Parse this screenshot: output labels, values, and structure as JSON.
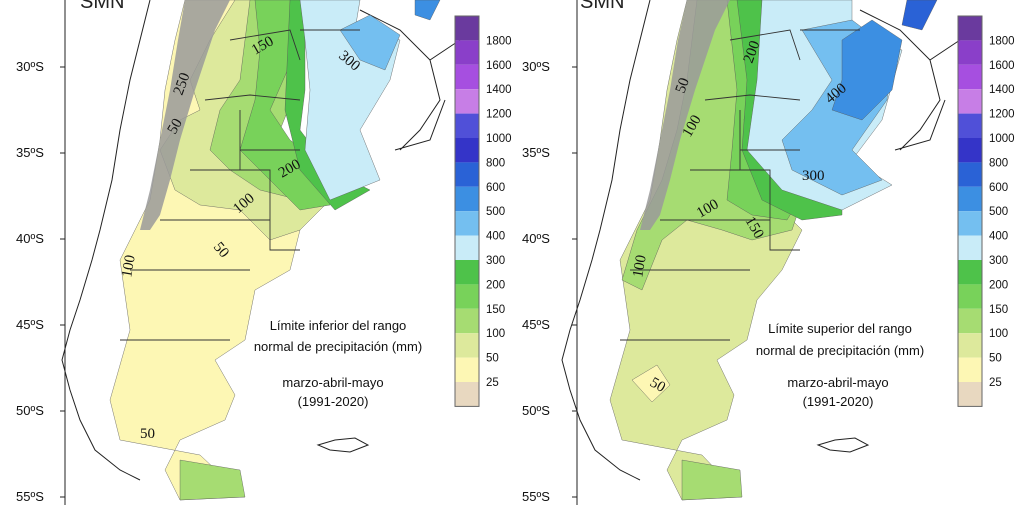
{
  "legend": {
    "levels": [
      "1800",
      "1600",
      "1400",
      "1200",
      "1000",
      "800",
      "600",
      "500",
      "400",
      "300",
      "200",
      "150",
      "100",
      "50",
      "25"
    ],
    "colors": [
      "#6a3a9e",
      "#8a3fc9",
      "#a64fe0",
      "#c77ee6",
      "#5050d8",
      "#3434c8",
      "#2a62d6",
      "#3c8fe2",
      "#74bff0",
      "#c9ecf8",
      "#4ec24a",
      "#78d25a",
      "#a6dc72",
      "#dde99c",
      "#fdf7b4",
      "#e8d8c0"
    ]
  },
  "axes": {
    "lat_ticks": [
      "30ºS",
      "35ºS",
      "40ºS",
      "45ºS",
      "50ºS",
      "55ºS"
    ]
  },
  "left_map": {
    "brand": "SMN",
    "caption_line1": "Límite inferior del rango",
    "caption_line2": "normal de precipitación (mm)",
    "period_line1": "marzo-abril-mayo",
    "period_line2": "(1991-2020)",
    "contour_labels": [
      "250",
      "150",
      "300",
      "50",
      "200",
      "100",
      "50",
      "100",
      "50"
    ]
  },
  "right_map": {
    "brand": "SMN",
    "caption_line1": "Límite superior del rango",
    "caption_line2": "normal de precipitación (mm)",
    "period_line1": "marzo-abril-mayo",
    "period_line2": "(1991-2020)",
    "contour_labels": [
      "50",
      "200",
      "400",
      "100",
      "300",
      "100",
      "150",
      "100",
      "50"
    ]
  }
}
